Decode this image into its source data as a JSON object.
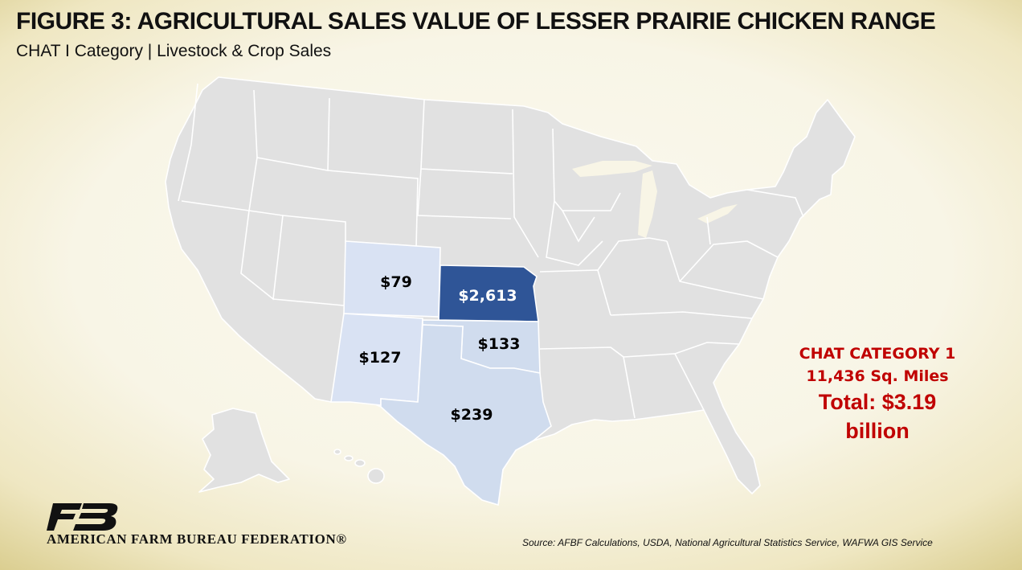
{
  "header": {
    "title": "FIGURE 3: AGRICULTURAL SALES VALUE OF LESSER PRAIRIE CHICKEN RANGE",
    "subtitle": "CHAT I Category | Livestock & Crop Sales"
  },
  "map": {
    "base_color": "#e1e1e1",
    "states": [
      {
        "name": "Colorado",
        "value_label": "$79",
        "color": "#d9e2f3"
      },
      {
        "name": "Kansas",
        "value_label": "$2,613",
        "color": "#2f5597"
      },
      {
        "name": "New Mexico",
        "value_label": "$127",
        "color": "#d9e2f3"
      },
      {
        "name": "Oklahoma",
        "value_label": "$133",
        "color": "#d0dcee"
      },
      {
        "name": "Texas",
        "value_label": "$239",
        "color": "#d0dcee"
      }
    ]
  },
  "callout": {
    "category": "CHAT CATEGORY 1",
    "area": "11,436 Sq. Miles",
    "total_line1": "Total: $3.19",
    "total_line2": "billion",
    "color": "#c00000"
  },
  "footer": {
    "org_name": "AMERICAN FARM BUREAU FEDERATION®",
    "source": "Source: AFBF Calculations, USDA, National Agricultural Statistics Service, WAFWA GIS Service",
    "logo_color": "#111111"
  }
}
